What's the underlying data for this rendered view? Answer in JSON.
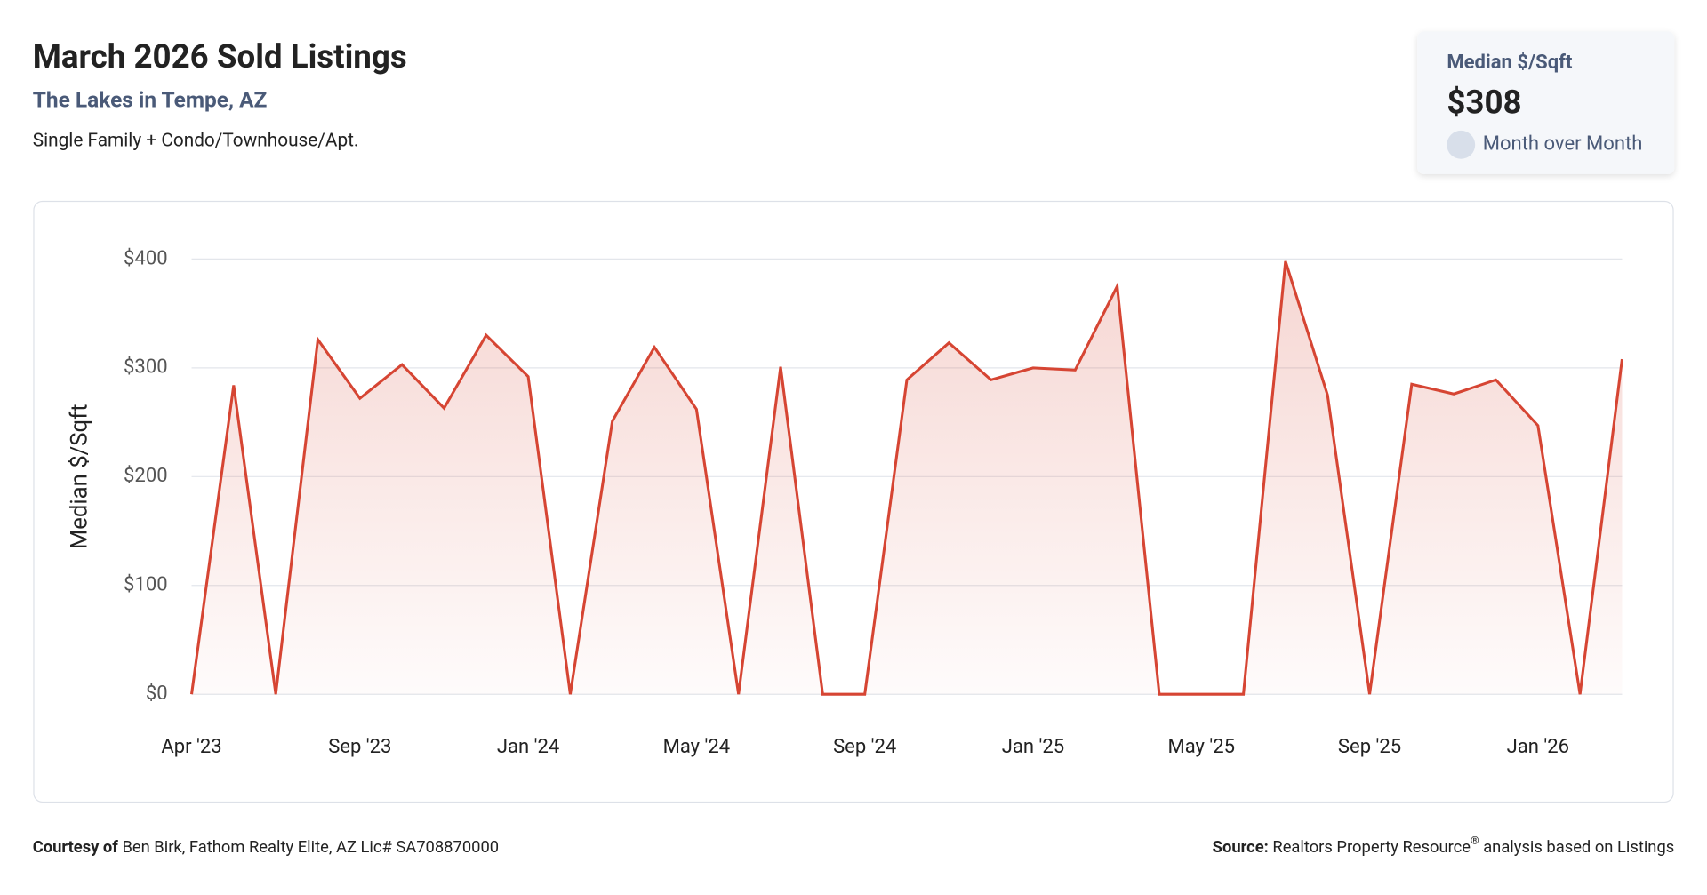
{
  "header": {
    "title": "March 2026 Sold Listings",
    "subtitle": "The Lakes in Tempe, AZ",
    "description": "Single Family + Condo/Townhouse/Apt."
  },
  "card": {
    "label": "Median $/Sqft",
    "value": "$308",
    "change": "Month over Month"
  },
  "chart_data": {
    "type": "line",
    "ylabel": "Median $/Sqft",
    "categories": [
      "Apr '23",
      null,
      null,
      null,
      "Sep '23",
      null,
      null,
      null,
      "Jan '24",
      null,
      null,
      null,
      "May '24",
      null,
      null,
      null,
      "Sep '24",
      null,
      null,
      null,
      "Jan '25",
      null,
      null,
      null,
      "May '25",
      null,
      null,
      null,
      "Sep '25",
      null,
      null,
      null,
      "Jan '26",
      null,
      null
    ],
    "series": [
      {
        "name": "Median $/Sqft",
        "color": "#d64533",
        "values": [
          0,
          284,
          0,
          326,
          272,
          303,
          263,
          330,
          292,
          0,
          251,
          319,
          262,
          0,
          301,
          0,
          0,
          289,
          323,
          289,
          300,
          298,
          375,
          0,
          0,
          0,
          398,
          275,
          0,
          285,
          276,
          289,
          247,
          0,
          308
        ]
      }
    ],
    "ylim": [
      0,
      400
    ],
    "yticks": [
      {
        "value": 0,
        "label": "$0"
      },
      {
        "value": 100,
        "label": "$100"
      },
      {
        "value": 200,
        "label": "$200"
      },
      {
        "value": 300,
        "label": "$300"
      },
      {
        "value": 400,
        "label": "$400"
      }
    ],
    "grid": true
  },
  "footer": {
    "courtesy_label": "Courtesy of",
    "courtesy_text": "Ben Birk, Fathom Realty Elite, AZ Lic# SA708870000",
    "source_label": "Source:",
    "source_text": "Realtors Property Resource",
    "source_mark": "®",
    "source_rest": "analysis based on Listings"
  }
}
